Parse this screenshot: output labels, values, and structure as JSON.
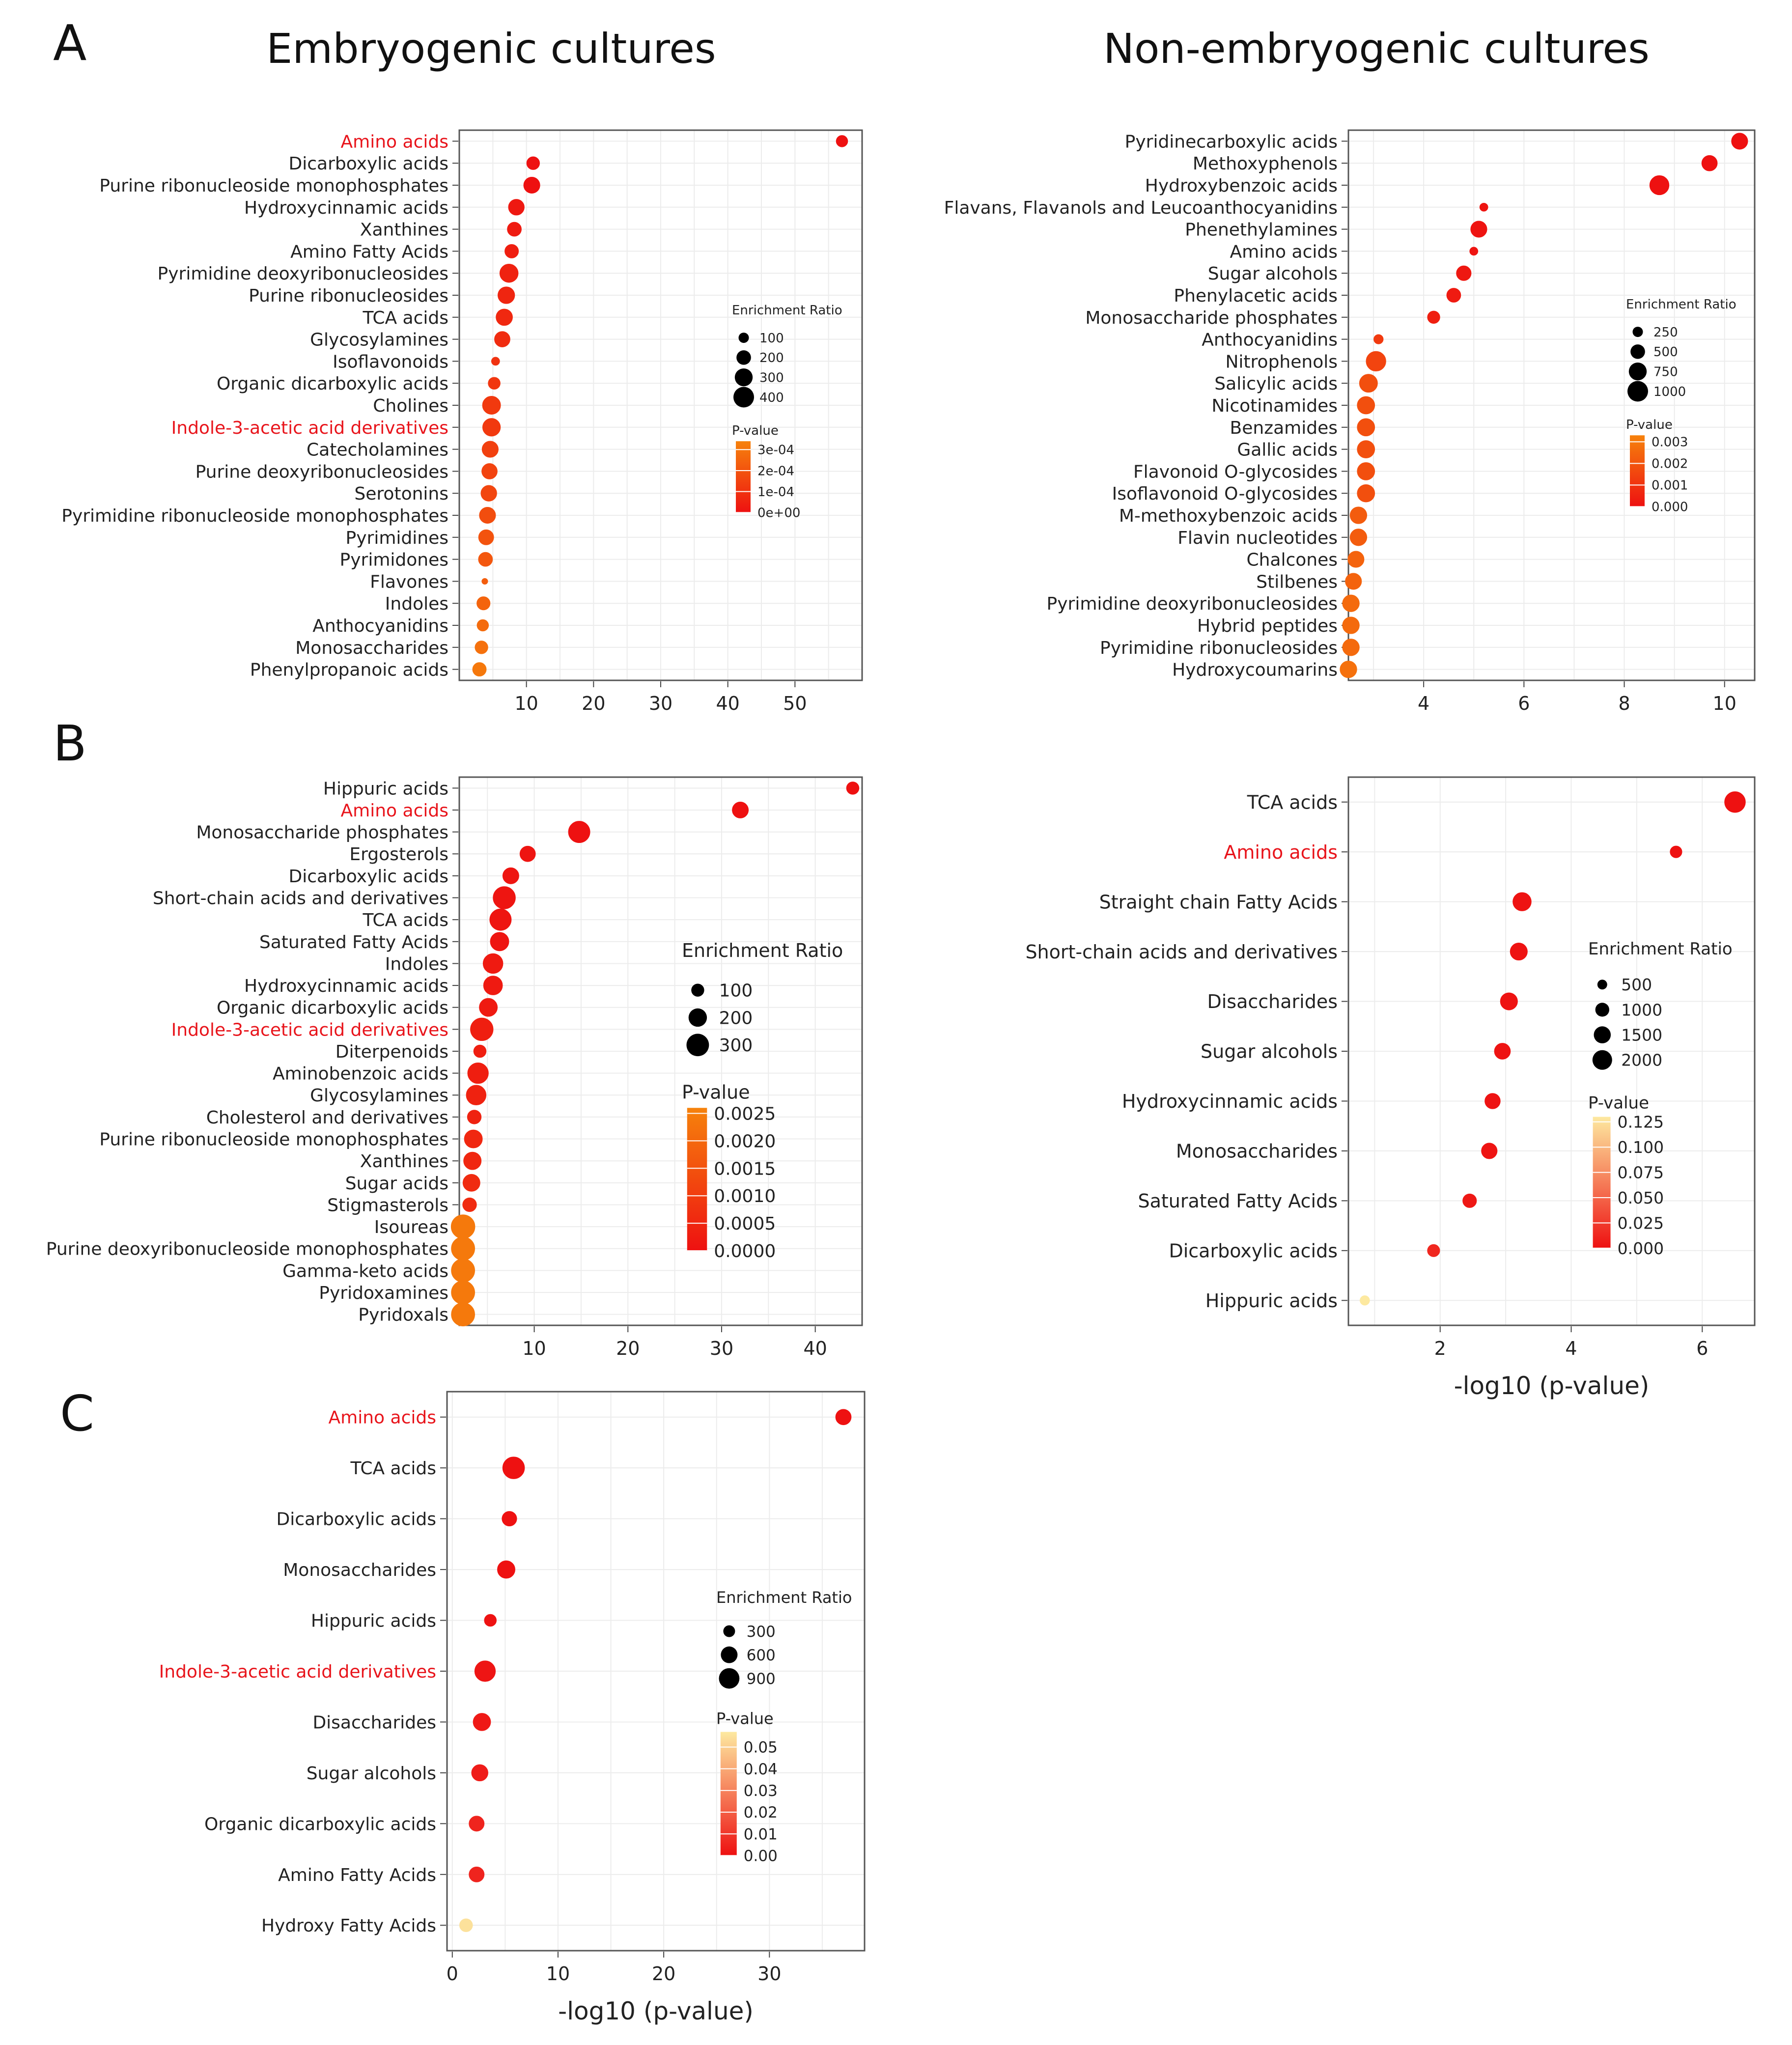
{
  "figure": {
    "panel_letters": [
      "A",
      "B",
      "C"
    ],
    "column_titles": [
      "Embryogenic cultures",
      "Non-embryogenic cultures"
    ],
    "colors": {
      "low_p": "#ee1111",
      "mid_p": "#f6820c",
      "high_p": "#fde9a0",
      "highlight_label": "#e8141b",
      "point_stroke": "#d40000"
    }
  },
  "chart_data": [
    {
      "id": "A-embryogenic",
      "type": "scatter",
      "panel": "A",
      "title": "Embryogenic cultures",
      "xlabel": "",
      "xlim": [
        0,
        60
      ],
      "xticks": [
        10,
        20,
        30,
        40,
        50
      ],
      "xtick_labels": [
        "10",
        "20",
        "30",
        "40",
        "50"
      ],
      "grid": true,
      "highlight_labels": [
        "Amino acids",
        "Indole-3-acetic acid derivatives"
      ],
      "categories": [
        "Amino acids",
        "Dicarboxylic acids",
        "Purine ribonucleoside monophosphates",
        "Hydroxycinnamic acids",
        "Xanthines",
        "Amino Fatty Acids",
        "Pyrimidine deoxyribonucleosides",
        "Purine ribonucleosides",
        "TCA acids",
        "Glycosylamines",
        "Isoflavonoids",
        "Organic dicarboxylic acids",
        "Cholines",
        "Indole-3-acetic acid derivatives",
        "Catecholamines",
        "Purine deoxyribonucleosides",
        "Serotonins",
        "Pyrimidine ribonucleoside monophosphates",
        "Pyrimidines",
        "Pyrimidones",
        "Flavones",
        "Indoles",
        "Anthocyanidins",
        "Monosaccharides",
        "Phenylpropanoic acids"
      ],
      "x": [
        57,
        11,
        10.8,
        8.5,
        8.2,
        7.8,
        7.4,
        7.0,
        6.7,
        6.4,
        5.4,
        5.2,
        4.8,
        4.8,
        4.6,
        4.5,
        4.4,
        4.2,
        4.0,
        3.9,
        3.8,
        3.6,
        3.5,
        3.3,
        3.0
      ],
      "enrichment_ratio": [
        120,
        150,
        240,
        230,
        180,
        170,
        310,
        260,
        250,
        220,
        60,
        130,
        300,
        290,
        240,
        220,
        230,
        240,
        210,
        180,
        30,
        160,
        120,
        150,
        170
      ],
      "p_value": [
        0,
        0,
        0,
        2e-05,
        3e-05,
        4e-05,
        5e-05,
        6e-05,
        7e-05,
        8e-05,
        0.0001,
        0.00011,
        0.00012,
        0.00012,
        0.00014,
        0.00015,
        0.00016,
        0.00018,
        0.0002,
        0.00021,
        0.00023,
        0.00025,
        0.00027,
        0.00029,
        0.00031
      ],
      "size_legend": {
        "title": "Enrichment Ratio",
        "values": [
          100,
          200,
          300,
          400
        ],
        "labels": [
          "100",
          "200",
          "300",
          "400"
        ]
      },
      "color_legend": {
        "title": "P-value",
        "range": [
          0,
          0.00034
        ],
        "ticks": [
          0.0003,
          0.0002,
          0.0001,
          0
        ],
        "labels": [
          "3e-04",
          "2e-04",
          "1e-04",
          "0e+00"
        ]
      }
    },
    {
      "id": "A-nonembryogenic",
      "type": "scatter",
      "panel": "A",
      "title": "Non-embryogenic cultures",
      "xlabel": "",
      "xlim": [
        2.5,
        10.6
      ],
      "xticks": [
        4,
        6,
        8,
        10
      ],
      "xtick_labels": [
        "4",
        "6",
        "8",
        "10"
      ],
      "grid": true,
      "highlight_labels": [],
      "categories": [
        "Pyridinecarboxylic acids",
        "Methoxyphenols",
        "Hydroxybenzoic acids",
        "Flavans, Flavanols and Leucoanthocyanidins",
        "Phenethylamines",
        "Amino acids",
        "Sugar alcohols",
        "Phenylacetic acids",
        "Monosaccharide phosphates",
        "Anthocyanidins",
        "Nitrophenols",
        "Salicylic acids",
        "Nicotinamides",
        "Benzamides",
        "Gallic acids",
        "Flavonoid O-glycosides",
        "Isoflavonoid O-glycosides",
        "M-methoxybenzoic acids",
        "Flavin nucleotides",
        "Chalcones",
        "Stilbenes",
        "Pyrimidine deoxyribonucleosides",
        "Hybrid peptides",
        "Pyrimidine ribonucleosides",
        "Hydroxycoumarins"
      ],
      "x": [
        10.3,
        9.7,
        8.7,
        5.2,
        5.1,
        5.0,
        4.8,
        4.6,
        4.2,
        3.1,
        3.05,
        2.9,
        2.85,
        2.85,
        2.85,
        2.85,
        2.85,
        2.7,
        2.7,
        2.65,
        2.6,
        2.55,
        2.55,
        2.55,
        2.5
      ],
      "enrichment_ratio": [
        600,
        550,
        850,
        150,
        600,
        150,
        500,
        450,
        350,
        200,
        900,
        750,
        700,
        700,
        700,
        700,
        700,
        650,
        650,
        600,
        600,
        650,
        650,
        650,
        650
      ],
      "p_value": [
        0,
        0,
        0,
        0.0001,
        0.0001,
        0.0001,
        0.0002,
        0.0003,
        0.0004,
        0.0012,
        0.0015,
        0.0018,
        0.0018,
        0.0018,
        0.0018,
        0.0018,
        0.0018,
        0.0022,
        0.0022,
        0.0024,
        0.0024,
        0.0026,
        0.0026,
        0.0026,
        0.0028
      ],
      "size_legend": {
        "title": "Enrichment Ratio",
        "values": [
          250,
          500,
          750,
          1000
        ],
        "labels": [
          "250",
          "500",
          "750",
          "1000"
        ]
      },
      "color_legend": {
        "title": "P-value",
        "range": [
          0,
          0.0033
        ],
        "ticks": [
          0.003,
          0.002,
          0.001,
          0
        ],
        "labels": [
          "0.003",
          "0.002",
          "0.001",
          "0.000"
        ]
      }
    },
    {
      "id": "B-embryogenic",
      "type": "scatter",
      "panel": "B",
      "title": "",
      "xlabel": "",
      "xlim": [
        2,
        45
      ],
      "xticks": [
        10,
        20,
        30,
        40
      ],
      "xtick_labels": [
        "10",
        "20",
        "30",
        "40"
      ],
      "grid": true,
      "highlight_labels": [
        "Amino acids",
        "Indole-3-acetic acid derivatives"
      ],
      "categories": [
        "Hippuric acids",
        "Amino acids",
        "Monosaccharide phosphates",
        "Ergosterols",
        "Dicarboxylic acids",
        "Short-chain acids and derivatives",
        "TCA acids",
        "Saturated Fatty Acids",
        "Indoles",
        "Hydroxycinnamic acids",
        "Organic dicarboxylic acids",
        "Indole-3-acetic acid derivatives",
        "Diterpenoids",
        "Aminobenzoic acids",
        "Glycosylamines",
        "Cholesterol and derivatives",
        "Purine ribonucleoside monophosphates",
        "Xanthines",
        "Sugar acids",
        "Stigmasterols",
        "Isoureas",
        "Purine deoxyribonucleoside monophosphates",
        "Gamma-keto acids",
        "Pyridoxamines",
        "Pyridoxals"
      ],
      "x": [
        44,
        32,
        14.8,
        9.3,
        7.5,
        6.8,
        6.4,
        6.3,
        5.6,
        5.6,
        5.1,
        4.4,
        4.2,
        4.0,
        3.8,
        3.6,
        3.5,
        3.4,
        3.3,
        3.1,
        2.4,
        2.4,
        2.4,
        2.4,
        2.4
      ],
      "enrichment_ratio": [
        90,
        150,
        270,
        140,
        150,
        290,
        270,
        200,
        230,
        210,
        190,
        300,
        90,
        250,
        230,
        110,
        190,
        180,
        170,
        110,
        330,
        320,
        320,
        320,
        320
      ],
      "p_value": [
        0,
        0,
        0,
        0.0001,
        0.0001,
        0.0001,
        0.0001,
        0.0001,
        0.0002,
        0.0002,
        0.0002,
        0.0003,
        0.0003,
        0.0003,
        0.0004,
        0.0004,
        0.0005,
        0.0005,
        0.0006,
        0.0006,
        0.0024,
        0.0024,
        0.0024,
        0.0024,
        0.0024
      ],
      "size_legend": {
        "title": "Enrichment Ratio",
        "values": [
          100,
          200,
          300
        ],
        "labels": [
          "100",
          "200",
          "300"
        ]
      },
      "color_legend": {
        "title": "P-value",
        "range": [
          0,
          0.0026
        ],
        "ticks": [
          0.0025,
          0.002,
          0.0015,
          0.001,
          0.0005,
          0
        ],
        "labels": [
          "0.0025",
          "0.0020",
          "0.0015",
          "0.0010",
          "0.0005",
          "0.0000"
        ]
      }
    },
    {
      "id": "B-nonembryogenic",
      "type": "scatter",
      "panel": "B",
      "title": "",
      "xlabel": "-log10 (p-value)",
      "xlim": [
        0.6,
        6.8
      ],
      "xticks": [
        2,
        4,
        6
      ],
      "xtick_labels": [
        "2",
        "4",
        "6"
      ],
      "grid": true,
      "highlight_labels": [
        "Amino acids"
      ],
      "categories": [
        "TCA acids",
        "Amino acids",
        "Straight chain Fatty Acids",
        "Short-chain acids and derivatives",
        "Disaccharides",
        "Sugar alcohols",
        "Hydroxycinnamic acids",
        "Monosaccharides",
        "Saturated Fatty Acids",
        "Dicarboxylic acids",
        "Hippuric acids"
      ],
      "x": [
        6.5,
        5.6,
        3.25,
        3.2,
        3.05,
        2.95,
        2.8,
        2.75,
        2.45,
        1.9,
        0.85
      ],
      "enrichment_ratio": [
        2200,
        700,
        1700,
        1500,
        1500,
        1300,
        1200,
        1250,
        950,
        750,
        450
      ],
      "p_value": [
        0,
        0,
        0.001,
        0.001,
        0.001,
        0.001,
        0.0015,
        0.0018,
        0.004,
        0.013,
        0.14
      ],
      "size_legend": {
        "title": "Enrichment Ratio",
        "values": [
          500,
          1000,
          1500,
          2000
        ],
        "labels": [
          "500",
          "1000",
          "1500",
          "2000"
        ]
      },
      "color_legend": {
        "title": "P-value",
        "range": [
          0,
          0.13
        ],
        "ticks": [
          0.125,
          0.1,
          0.075,
          0.05,
          0.025,
          0
        ],
        "labels": [
          "0.125",
          "0.100",
          "0.075",
          "0.050",
          "0.025",
          "0.000"
        ]
      }
    },
    {
      "id": "C",
      "type": "scatter",
      "panel": "C",
      "title": "",
      "xlabel": "-log10 (p-value)",
      "xlim": [
        -0.5,
        39
      ],
      "xticks": [
        0,
        10,
        20,
        30
      ],
      "xtick_labels": [
        "0",
        "10",
        "20",
        "30"
      ],
      "grid": true,
      "highlight_labels": [
        "Amino acids",
        "Indole-3-acetic acid derivatives"
      ],
      "categories": [
        "Amino acids",
        "TCA acids",
        "Dicarboxylic acids",
        "Monosaccharides",
        "Hippuric acids",
        "Indole-3-acetic acid derivatives",
        "Disaccharides",
        "Sugar alcohols",
        "Organic dicarboxylic acids",
        "Amino Fatty Acids",
        "Hydroxy Fatty Acids"
      ],
      "x": [
        37,
        5.8,
        5.4,
        5.1,
        3.6,
        3.1,
        2.8,
        2.6,
        2.3,
        2.3,
        1.3
      ],
      "enrichment_ratio": [
        500,
        1000,
        450,
        650,
        300,
        900,
        640,
        560,
        480,
        480,
        350
      ],
      "p_value": [
        0,
        0,
        0,
        0,
        0.0003,
        0.001,
        0.002,
        0.003,
        0.005,
        0.005,
        0.055
      ],
      "size_legend": {
        "title": "Enrichment Ratio",
        "values": [
          300,
          600,
          900
        ],
        "labels": [
          "300",
          "600",
          "900"
        ]
      },
      "color_legend": {
        "title": "P-value",
        "range": [
          0,
          0.057
        ],
        "ticks": [
          0.05,
          0.04,
          0.03,
          0.02,
          0.01,
          0
        ],
        "labels": [
          "0.05",
          "0.04",
          "0.03",
          "0.02",
          "0.01",
          "0.00"
        ]
      }
    }
  ]
}
